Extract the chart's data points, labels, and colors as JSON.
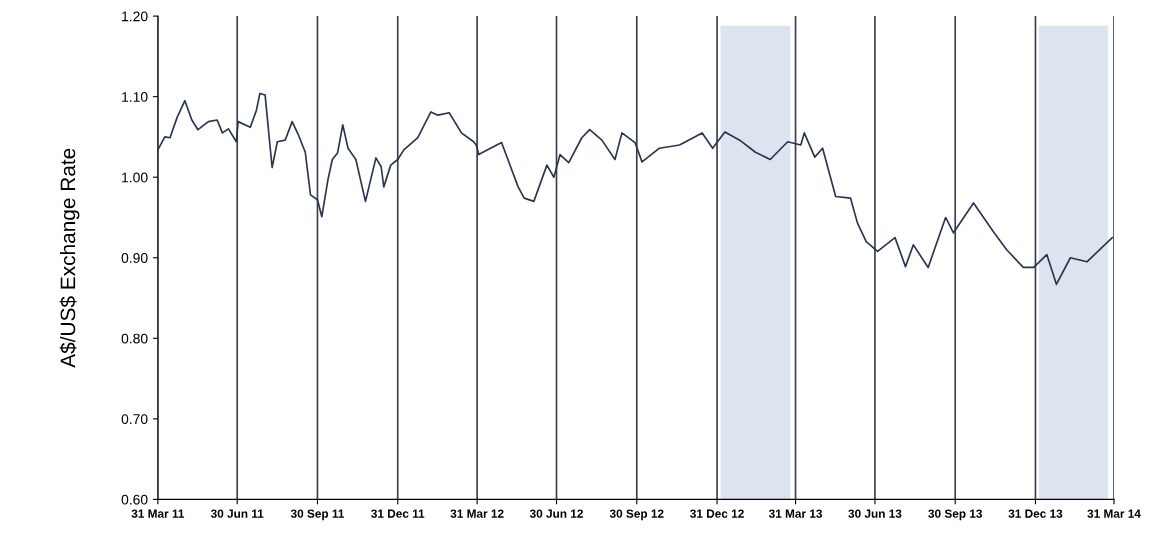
{
  "chart_data": {
    "type": "line",
    "ylabel": "A$/US$ Exchange Rate",
    "x": [
      "2011-03-31",
      "2011-04-08",
      "2011-04-14",
      "2011-04-22",
      "2011-05-01",
      "2011-05-09",
      "2011-05-16",
      "2011-05-28",
      "2011-06-07",
      "2011-06-13",
      "2011-06-20",
      "2011-06-29",
      "2011-07-01",
      "2011-07-15",
      "2011-07-22",
      "2011-07-26",
      "2011-08-01",
      "2011-08-09",
      "2011-08-15",
      "2011-08-24",
      "2011-09-01",
      "2011-09-08",
      "2011-09-16",
      "2011-09-22",
      "2011-09-30",
      "2011-10-05",
      "2011-10-12",
      "2011-10-17",
      "2011-10-23",
      "2011-10-29",
      "2011-11-04",
      "2011-11-13",
      "2011-11-24",
      "2011-12-06",
      "2011-12-12",
      "2011-12-15",
      "2011-12-23",
      "2011-12-31",
      "2012-01-07",
      "2012-01-23",
      "2012-02-07",
      "2012-02-15",
      "2012-02-28",
      "2012-03-13",
      "2012-03-27",
      "2012-03-30",
      "2012-04-02",
      "2012-04-05",
      "2012-04-28",
      "2012-05-17",
      "2012-05-24",
      "2012-06-04",
      "2012-06-19",
      "2012-06-27",
      "2012-07-04",
      "2012-07-14",
      "2012-07-29",
      "2012-08-07",
      "2012-08-21",
      "2012-09-05",
      "2012-09-13",
      "2012-09-28",
      "2012-10-06",
      "2012-10-26",
      "2012-11-18",
      "2012-12-14",
      "2012-12-26",
      "2013-01-09",
      "2013-01-26",
      "2013-02-13",
      "2013-03-02",
      "2013-03-22",
      "2013-04-06",
      "2013-04-10",
      "2013-04-22",
      "2013-05-01",
      "2013-05-16",
      "2013-06-02",
      "2013-06-10",
      "2013-06-20",
      "2013-07-03",
      "2013-07-23",
      "2013-08-04",
      "2013-08-13",
      "2013-08-30",
      "2013-09-19",
      "2013-09-28",
      "2013-10-21",
      "2013-11-13",
      "2013-11-28",
      "2013-12-17",
      "2013-12-29",
      "2014-01-13",
      "2014-01-24",
      "2014-02-09",
      "2014-02-28",
      "2014-03-29"
    ],
    "series": [
      {
        "color": "#2a3550",
        "values": [
          1.034,
          1.05,
          1.049,
          1.074,
          1.095,
          1.071,
          1.059,
          1.069,
          1.071,
          1.055,
          1.06,
          1.044,
          1.069,
          1.062,
          1.083,
          1.104,
          1.102,
          1.012,
          1.044,
          1.046,
          1.069,
          1.053,
          1.031,
          0.978,
          0.972,
          0.951,
          0.997,
          1.022,
          1.03,
          1.065,
          1.036,
          1.022,
          0.97,
          1.024,
          1.013,
          0.988,
          1.015,
          1.022,
          1.034,
          1.049,
          1.081,
          1.077,
          1.08,
          1.055,
          1.044,
          1.04,
          1.028,
          1.03,
          1.043,
          0.988,
          0.974,
          0.97,
          1.015,
          1.0,
          1.028,
          1.018,
          1.049,
          1.059,
          1.046,
          1.022,
          1.055,
          1.043,
          1.019,
          1.036,
          1.04,
          1.055,
          1.036,
          1.056,
          1.046,
          1.031,
          1.022,
          1.044,
          1.04,
          1.055,
          1.025,
          1.036,
          0.976,
          0.974,
          0.943,
          0.92,
          0.908,
          0.925,
          0.889,
          0.916,
          0.888,
          0.95,
          0.931,
          0.968,
          0.932,
          0.91,
          0.888,
          0.888,
          0.904,
          0.867,
          0.9,
          0.895,
          0.925
        ]
      }
    ],
    "xlim": [
      "2011-03-31",
      "2014-03-31"
    ],
    "xticks": [
      {
        "value": "2011-03-31",
        "label": "31 Mar 11"
      },
      {
        "value": "2011-06-30",
        "label": "30 Jun 11"
      },
      {
        "value": "2011-09-30",
        "label": "30 Sep 11"
      },
      {
        "value": "2011-12-31",
        "label": "31 Dec 11"
      },
      {
        "value": "2012-03-31",
        "label": "31 Mar 12"
      },
      {
        "value": "2012-06-30",
        "label": "30 Jun 12"
      },
      {
        "value": "2012-09-30",
        "label": "30 Sep 12"
      },
      {
        "value": "2012-12-31",
        "label": "31 Dec 12"
      },
      {
        "value": "2013-03-31",
        "label": "31 Mar 13"
      },
      {
        "value": "2013-06-30",
        "label": "30 Jun 13"
      },
      {
        "value": "2013-09-30",
        "label": "30 Sep 13"
      },
      {
        "value": "2013-12-31",
        "label": "31 Dec 13"
      },
      {
        "value": "2014-03-31",
        "label": "31 Mar 14"
      }
    ],
    "ylim": [
      0.6,
      1.2
    ],
    "yticks": [
      {
        "value": 0.6,
        "label": "0.60"
      },
      {
        "value": 0.7,
        "label": "0.70"
      },
      {
        "value": 0.8,
        "label": "0.80"
      },
      {
        "value": 0.9,
        "label": "0.90"
      },
      {
        "value": 1.0,
        "label": "1.00"
      },
      {
        "value": 1.1,
        "label": "1.10"
      },
      {
        "value": 1.2,
        "label": "1.20"
      }
    ],
    "bands": [
      {
        "axis": "x",
        "from": "2013-01-04",
        "to": "2013-03-25",
        "color": "#dde4f0"
      },
      {
        "axis": "x",
        "from": "2014-01-04",
        "to": "2014-03-24",
        "color": "#dde4f0"
      }
    ],
    "grid": "x",
    "legend": false
  }
}
